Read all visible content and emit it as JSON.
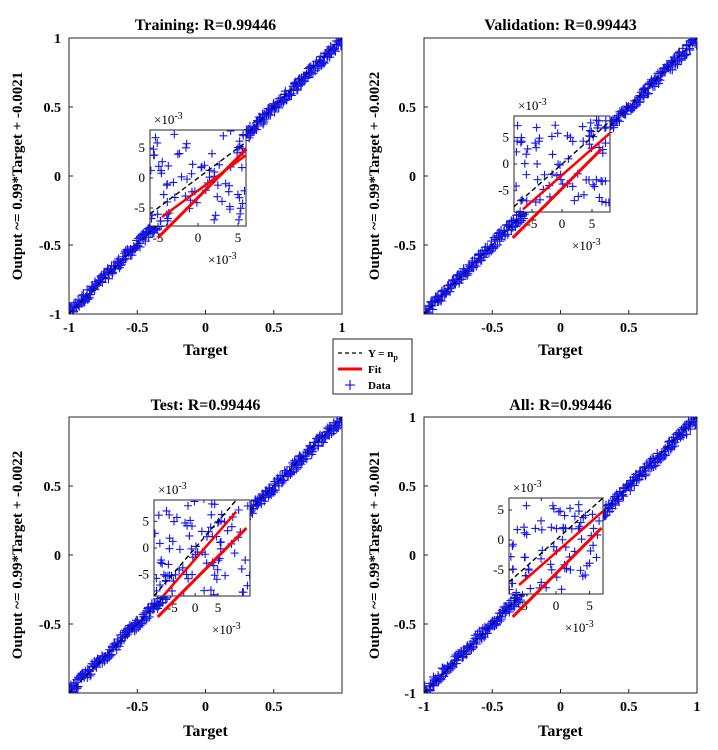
{
  "chart_data": [
    {
      "type": "scatter",
      "title": "Training: R=0.99446",
      "xlabel": "Target",
      "ylabel": "Output ~= 0.99*Target + -0.0021",
      "xlim": [
        -1,
        1
      ],
      "ylim": [
        -1,
        1
      ],
      "xticks": [
        "-1",
        "-0.5",
        "0",
        "0.5",
        "1"
      ],
      "yticks": [
        "-1",
        "-0.5",
        "0",
        "0.5",
        "1"
      ],
      "fit": {
        "slope": 0.99,
        "intercept": -0.0021
      },
      "series": [
        {
          "name": "Data",
          "pattern": "diagonal cloud",
          "x_range": [
            -1,
            1
          ]
        }
      ],
      "inset": {
        "xlim": [
          -6,
          6
        ],
        "ylim": [
          -8,
          8
        ],
        "xticks": [
          "-5",
          "0",
          "5"
        ],
        "yticks": [
          "-5",
          "0",
          "5"
        ],
        "x_exponent": "×10",
        "y_exponent": "×10",
        "exponent_power": "-3"
      }
    },
    {
      "type": "scatter",
      "title": "Validation: R=0.99443",
      "xlabel": "Target",
      "ylabel": "Output ~= 0.99*Target + -0.0022",
      "xlim": [
        -1,
        1
      ],
      "ylim": [
        -1,
        1
      ],
      "xticks": [
        "-0.5",
        "0",
        "0.5"
      ],
      "yticks": [
        "-0.5",
        "0",
        "0.5"
      ],
      "fit": {
        "slope": 0.99,
        "intercept": -0.0022
      },
      "series": [
        {
          "name": "Data",
          "pattern": "diagonal cloud",
          "x_range": [
            -1,
            1
          ]
        }
      ],
      "inset": {
        "xlim": [
          -8,
          8
        ],
        "ylim": [
          -9,
          9
        ],
        "xticks": [
          "-5",
          "0",
          "5"
        ],
        "yticks": [
          "-5",
          "0",
          "5"
        ],
        "x_exponent": "×10",
        "y_exponent": "×10",
        "exponent_power": "-3"
      }
    },
    {
      "type": "scatter",
      "title": "Test: R=0.99446",
      "xlabel": "Target",
      "ylabel": "Output ~= 0.99*Target + -0.0022",
      "xlim": [
        -1,
        1
      ],
      "ylim": [
        -1,
        1
      ],
      "xticks": [
        "-0.5",
        "0",
        "0.5"
      ],
      "yticks": [
        "-0.5",
        "0",
        "0.5"
      ],
      "fit": {
        "slope": 0.99,
        "intercept": -0.0022
      },
      "series": [
        {
          "name": "Data",
          "pattern": "diagonal cloud",
          "x_range": [
            -1,
            1
          ]
        }
      ],
      "inset": {
        "xlim": [
          -9,
          12
        ],
        "ylim": [
          -9,
          9
        ],
        "xticks": [
          "-5",
          "0",
          "5"
        ],
        "yticks": [
          "-5",
          "0",
          "5"
        ],
        "x_exponent": "×10",
        "y_exponent": "×10",
        "exponent_power": "-3"
      }
    },
    {
      "type": "scatter",
      "title": "All: R=0.99446",
      "xlabel": "Target",
      "ylabel": "Output ~= 0.99*Target + -0.0021",
      "xlim": [
        -1,
        1
      ],
      "ylim": [
        -1,
        1
      ],
      "xticks": [
        "-1",
        "-0.5",
        "0",
        "0.5",
        "1"
      ],
      "yticks": [
        "-1",
        "-0.5",
        "0",
        "0.5",
        "1"
      ],
      "fit": {
        "slope": 0.99,
        "intercept": -0.0021
      },
      "series": [
        {
          "name": "Data",
          "pattern": "diagonal cloud",
          "x_range": [
            -1,
            1
          ]
        }
      ],
      "inset": {
        "xlim": [
          -7,
          7
        ],
        "ylim": [
          -9,
          7
        ],
        "xticks": [
          "-5",
          "0",
          "5"
        ],
        "yticks": [
          "-5",
          "0",
          "5"
        ],
        "x_exponent": "×10",
        "y_exponent": "×10",
        "exponent_power": "-3"
      }
    }
  ],
  "legend": {
    "placement": "center",
    "entries": [
      {
        "label": "Y = n",
        "subscript": "p",
        "style": "dashed",
        "color": "#000000"
      },
      {
        "label": "Fit",
        "style": "solid",
        "color": "#ff0000"
      },
      {
        "label": "Data",
        "style": "plus",
        "color": "#0000ff"
      }
    ]
  },
  "colors": {
    "data": "#1515f0",
    "fit": "#ff0000",
    "identity": "#000000"
  }
}
